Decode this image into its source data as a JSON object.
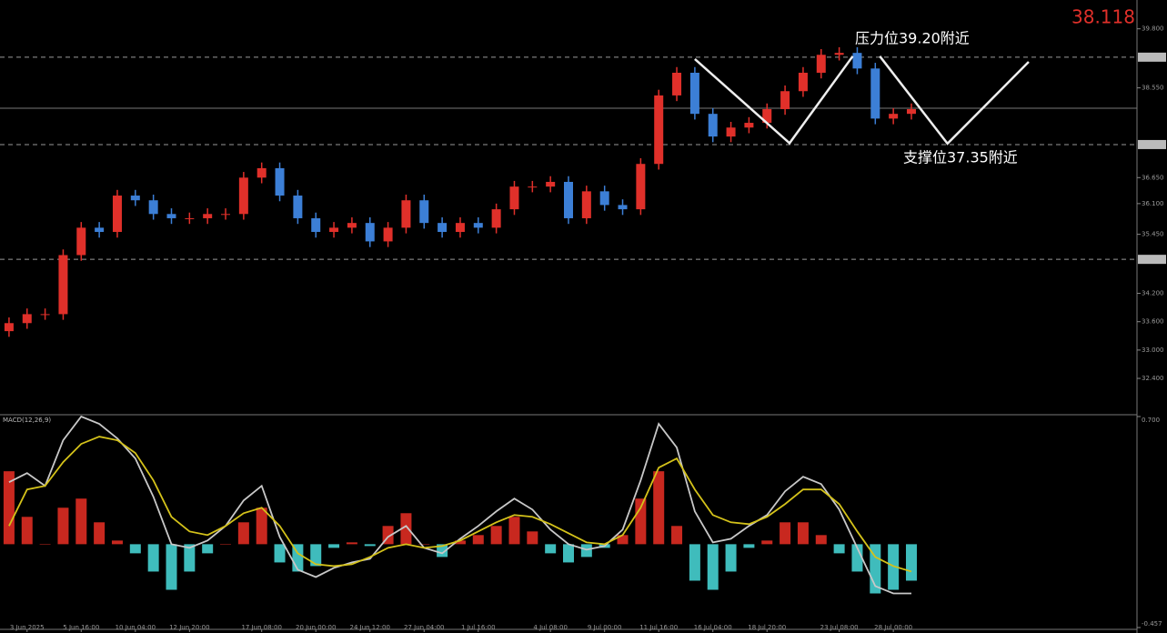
{
  "chart_data": [
    {
      "type": "candlestick",
      "xlim": [
        -0.5,
        62.5
      ],
      "xticks": [
        {
          "value": 1,
          "label": "3 Jun 2025"
        },
        {
          "value": 4,
          "label": "5 Jun 16:00"
        },
        {
          "value": 7,
          "label": "10 Jun 04:00"
        },
        {
          "value": 10,
          "label": "12 Jun 20:00"
        },
        {
          "value": 14,
          "label": "17 Jun 08:00"
        },
        {
          "value": 17,
          "label": "20 Jun 00:00"
        },
        {
          "value": 20,
          "label": "24 Jun 12:00"
        },
        {
          "value": 23,
          "label": "27 Jun 04:00"
        },
        {
          "value": 26,
          "label": "1 Jul 16:00"
        },
        {
          "value": 30,
          "label": "4 Jul 08:00"
        },
        {
          "value": 33,
          "label": "9 Jul 00:00"
        },
        {
          "value": 36,
          "label": "11 Jul 16:00"
        },
        {
          "value": 39,
          "label": "16 Jul 04:00"
        },
        {
          "value": 42,
          "label": "18 Jul 20:00"
        },
        {
          "value": 46,
          "label": "23 Jul 08:00"
        },
        {
          "value": 49,
          "label": "28 Jul 00:00"
        }
      ],
      "ylim": [
        31.65,
        40.41
      ],
      "yticks": [
        {
          "value": 39.8,
          "label": "39.800"
        },
        {
          "value": 38.55,
          "label": "38.550"
        },
        {
          "value": 36.65,
          "label": "36.650"
        },
        {
          "value": 36.1,
          "label": "36.100"
        },
        {
          "value": 35.45,
          "label": "35.450"
        },
        {
          "value": 34.2,
          "label": "34.200"
        },
        {
          "value": 33.6,
          "label": "33.600"
        },
        {
          "value": 33.0,
          "label": "33.000"
        },
        {
          "value": 32.4,
          "label": "32.400"
        }
      ],
      "open": [
        33.4,
        33.57,
        33.76,
        33.76,
        35.01,
        35.59,
        35.5,
        36.27,
        36.17,
        35.88,
        35.79,
        35.79,
        35.88,
        35.88,
        36.65,
        36.85,
        36.27,
        35.79,
        35.5,
        35.59,
        35.69,
        35.3,
        35.59,
        36.17,
        35.69,
        35.5,
        35.69,
        35.59,
        35.98,
        36.46,
        36.46,
        36.56,
        35.79,
        36.36,
        36.07,
        35.98,
        36.94,
        38.39,
        38.87,
        38.0,
        37.52,
        37.71,
        37.81,
        38.1,
        38.48,
        38.87,
        39.25,
        39.29,
        38.96,
        37.9,
        38.0
      ],
      "high": [
        33.69,
        33.88,
        33.88,
        35.13,
        35.71,
        35.71,
        36.39,
        36.39,
        36.29,
        36.0,
        35.91,
        36.0,
        36.0,
        36.77,
        36.97,
        36.97,
        36.39,
        35.91,
        35.71,
        35.81,
        35.81,
        35.71,
        36.29,
        36.29,
        35.81,
        35.81,
        35.81,
        36.1,
        36.58,
        36.58,
        36.68,
        36.68,
        36.48,
        36.48,
        36.19,
        37.06,
        38.51,
        38.99,
        38.99,
        38.12,
        37.83,
        37.93,
        38.22,
        38.6,
        38.99,
        39.37,
        39.41,
        39.41,
        39.08,
        38.12,
        38.22
      ],
      "low": [
        33.28,
        33.45,
        33.64,
        33.64,
        34.89,
        35.38,
        35.38,
        36.05,
        35.76,
        35.67,
        35.67,
        35.67,
        35.76,
        35.76,
        36.53,
        36.15,
        35.67,
        35.38,
        35.38,
        35.47,
        35.18,
        35.18,
        35.47,
        35.57,
        35.38,
        35.38,
        35.47,
        35.47,
        35.86,
        36.34,
        36.34,
        35.67,
        35.67,
        35.95,
        35.86,
        35.86,
        36.82,
        38.27,
        37.88,
        37.4,
        37.4,
        37.59,
        37.69,
        37.98,
        38.36,
        38.75,
        39.13,
        38.84,
        37.78,
        37.78,
        37.88
      ],
      "close": [
        33.57,
        33.76,
        33.76,
        35.01,
        35.59,
        35.5,
        36.27,
        36.17,
        35.88,
        35.79,
        35.79,
        35.88,
        35.88,
        36.65,
        36.85,
        36.27,
        35.79,
        35.5,
        35.59,
        35.69,
        35.3,
        35.59,
        36.17,
        35.69,
        35.5,
        35.69,
        35.59,
        35.98,
        36.46,
        36.46,
        36.56,
        35.79,
        36.36,
        36.07,
        35.98,
        36.94,
        38.39,
        38.87,
        38.0,
        37.52,
        37.71,
        37.81,
        38.1,
        38.48,
        38.87,
        39.25,
        39.29,
        38.96,
        37.9,
        38.0,
        38.1
      ],
      "up_color": "#e0302a",
      "down_color": "#3c7fd6",
      "last_price": 38.118,
      "levels": [
        {
          "value": 39.2,
          "label": "压力位39.20附近"
        },
        {
          "value": 37.35,
          "label": "支撑位37.35附近"
        },
        {
          "value": 34.92
        }
      ],
      "forecast": {
        "x": [
          38,
          43.25,
          46.75,
          47.5,
          48.25,
          52,
          56.5
        ],
        "y": [
          39.16,
          37.38,
          39.22,
          null,
          39.22,
          37.37,
          39.1
        ]
      }
    },
    {
      "type": "macd",
      "title": "MACD(12,26,9)",
      "xlim": [
        -0.5,
        62.5
      ],
      "ylim": [
        -0.457,
        0.7
      ],
      "yticks": [
        {
          "value": 0.7,
          "label": "0.700"
        },
        -0.457
      ],
      "histogram": [
        0.4,
        0.15,
        0.0,
        0.2,
        0.25,
        0.12,
        0.02,
        -0.05,
        -0.15,
        -0.25,
        -0.15,
        -0.05,
        0.0,
        0.12,
        0.2,
        -0.1,
        -0.15,
        -0.12,
        -0.02,
        0.01,
        -0.01,
        0.1,
        0.17,
        0,
        -0.07,
        0.02,
        0.05,
        0.1,
        0.15,
        0.07,
        -0.05,
        -0.1,
        -0.07,
        -0.02,
        0.05,
        0.25,
        0.4,
        0.1,
        -0.2,
        -0.25,
        -0.15,
        -0.02,
        0.02,
        0.12,
        0.12,
        0.05,
        -0.05,
        -0.15,
        -0.27,
        -0.25,
        -0.2
      ],
      "up_color": "#c8281f",
      "down_color": "#3fbcbc",
      "series": [
        {
          "color": "#c8c8c8",
          "values": [
            0.34,
            0.39,
            0.32,
            0.57,
            0.7,
            0.66,
            0.58,
            0.47,
            0.26,
            0.0,
            -0.02,
            0.02,
            0.1,
            0.24,
            0.32,
            0.04,
            -0.14,
            -0.18,
            -0.13,
            -0.1,
            -0.08,
            0.04,
            0.1,
            -0.02,
            -0.05,
            0.03,
            0.1,
            0.18,
            0.25,
            0.19,
            0.08,
            0.0,
            -0.03,
            -0.01,
            0.08,
            0.35,
            0.66,
            0.53,
            0.18,
            0.01,
            0.03,
            0.1,
            0.16,
            0.29,
            0.37,
            0.33,
            0.19,
            -0.02,
            -0.23,
            -0.27,
            -0.27
          ]
        },
        {
          "color": "#d4c21a",
          "values": [
            0.1,
            0.3,
            0.32,
            0.45,
            0.55,
            0.59,
            0.57,
            0.5,
            0.35,
            0.15,
            0.07,
            0.05,
            0.1,
            0.17,
            0.2,
            0.1,
            -0.05,
            -0.11,
            -0.12,
            -0.11,
            -0.07,
            -0.02,
            0.0,
            -0.02,
            -0.01,
            0.02,
            0.07,
            0.12,
            0.16,
            0.15,
            0.11,
            0.06,
            0.01,
            0.0,
            0.05,
            0.2,
            0.42,
            0.47,
            0.3,
            0.16,
            0.12,
            0.11,
            0.15,
            0.22,
            0.3,
            0.3,
            0.22,
            0.07,
            -0.07,
            -0.12,
            -0.15
          ]
        }
      ]
    }
  ]
}
